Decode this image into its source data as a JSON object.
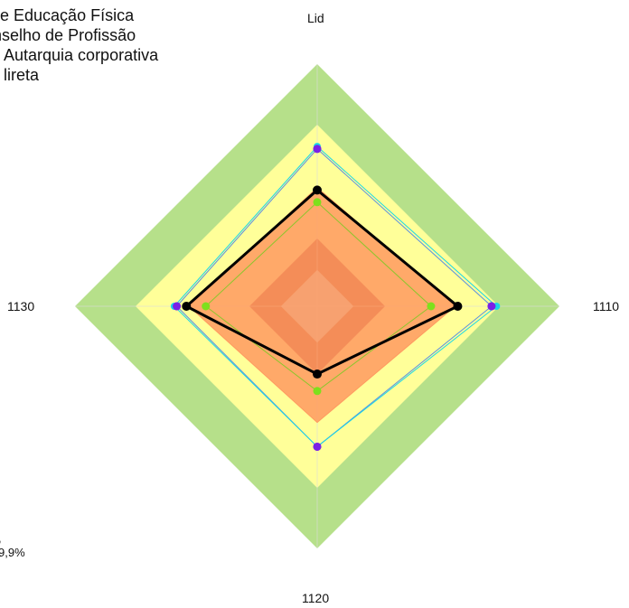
{
  "header": {
    "title_lines": [
      "de Educação Física",
      "nselho de Profissão",
      "Autarquia corporativa",
      "lireta"
    ]
  },
  "footnote": {
    "lines": [
      ",",
      "9,9%"
    ]
  },
  "chart_data": {
    "type": "radar",
    "axes": [
      "Lid",
      "1110",
      "1120",
      "1130"
    ],
    "rmax": 1.0,
    "bands": [
      {
        "from": 0.0,
        "to": 0.15,
        "color": "#c8c8c8"
      },
      {
        "from": 0.15,
        "to": 0.28,
        "color": "#b2432b"
      },
      {
        "from": 0.28,
        "to": 0.75,
        "color": "#ffff99"
      },
      {
        "from": 0.75,
        "to": 1.0,
        "color": "#b6e08a"
      }
    ],
    "series": [
      {
        "color": "#ff9a60",
        "fill": true,
        "values": [
          0.49,
          0.57,
          0.48,
          0.53
        ]
      },
      {
        "color": "#5a8fe0",
        "fill": false,
        "values": [
          0.65,
          0.72,
          0.58,
          0.58
        ],
        "marker": "#7a20e6"
      },
      {
        "color": "#19d7e8",
        "fill": false,
        "values": [
          0.66,
          0.74,
          0.58,
          0.59
        ]
      },
      {
        "color": "#8bc62c",
        "fill": false,
        "values": [
          0.43,
          0.47,
          0.35,
          0.46
        ],
        "marker": "#7ee01c"
      },
      {
        "color": "#000000",
        "fill": false,
        "width": 3,
        "values": [
          0.48,
          0.58,
          0.28,
          0.54
        ],
        "marker": "#000000"
      }
    ]
  }
}
